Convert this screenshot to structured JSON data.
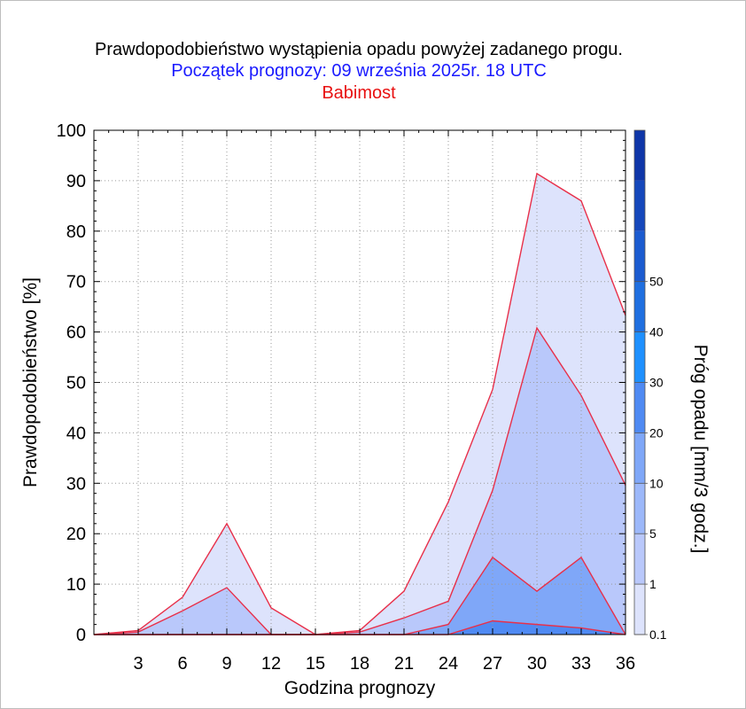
{
  "header": {
    "title": "Prawdopodobieństwo wystąpienia opadu powyżej zadanego progu.",
    "subtitle": "Początek prognozy: 09 września 2025r. 18 UTC",
    "location": "Babimost"
  },
  "colors": {
    "outline": "#e8304a",
    "grid": "#9a9a9a",
    "title": "#000000",
    "subtitle": "#1a1aff",
    "location": "#e81010"
  },
  "chart_data": {
    "type": "area",
    "title": "Prawdopodobieństwo wystąpienia opadu powyżej zadanego progu.",
    "xlabel": "Godzina prognozy",
    "ylabel": "Prawdopodobieństwo [%]",
    "xlim": [
      0,
      36
    ],
    "ylim": [
      0,
      100
    ],
    "x": [
      0,
      3,
      6,
      9,
      12,
      15,
      18,
      21,
      24,
      27,
      30,
      33,
      36
    ],
    "x_tick_labels": [
      "3",
      "6",
      "9",
      "12",
      "15",
      "18",
      "21",
      "24",
      "27",
      "30",
      "33",
      "36"
    ],
    "y_tick_labels": [
      "0",
      "10",
      "20",
      "30",
      "40",
      "50",
      "60",
      "70",
      "80",
      "90",
      "100"
    ],
    "grid": true,
    "series": [
      {
        "name": "0.1",
        "color": "#dde3fc",
        "values": [
          0,
          0.8,
          7.4,
          22,
          5.3,
          0,
          0.8,
          8.6,
          26.3,
          48.6,
          91.4,
          86,
          63.3
        ]
      },
      {
        "name": "1",
        "color": "#b9c8fb",
        "values": [
          0,
          0.5,
          4.7,
          9.3,
          0,
          0,
          0.5,
          3.3,
          6.6,
          28.6,
          60.8,
          47.4,
          29.6
        ]
      },
      {
        "name": "5",
        "color": "#7fa7f8",
        "values": [
          0,
          0,
          0,
          0,
          0,
          0,
          0,
          0,
          2,
          15.3,
          8.6,
          15.3,
          0
        ]
      },
      {
        "name": "10",
        "color": "#4f8af3",
        "values": [
          0,
          0,
          0,
          0,
          0,
          0,
          0,
          0,
          0,
          2.7,
          2,
          1.3,
          0
        ]
      }
    ],
    "colorbar": {
      "label": "Próg opadu [mm/3 godz.]",
      "labels": [
        "0.1",
        "1",
        "5",
        "10",
        "20",
        "30",
        "40",
        "50"
      ],
      "colors": [
        "#dde3fc",
        "#b9c8fb",
        "#9cb8fa",
        "#7fa7f8",
        "#4f8af3",
        "#1e90ff",
        "#1f6fe0",
        "#1b5bd0",
        "#1547bb",
        "#0f36a8"
      ]
    }
  }
}
